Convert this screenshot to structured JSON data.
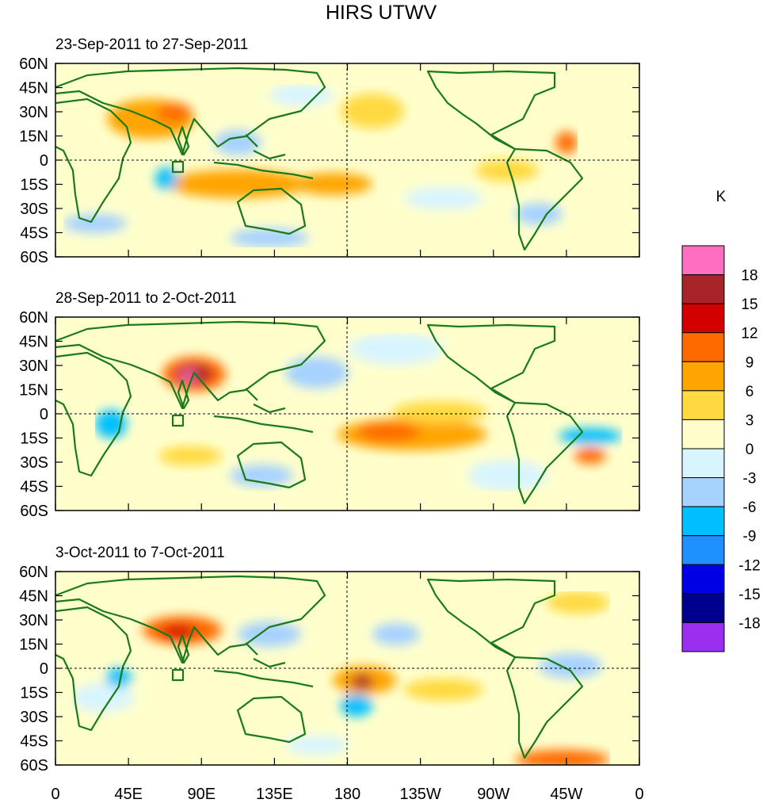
{
  "title": "HIRS UTWV",
  "panels": [
    {
      "period": "23-Sep-2011 to 27-Sep-2011"
    },
    {
      "period": "28-Sep-2011 to 2-Oct-2011"
    },
    {
      "period": "3-Oct-2011 to 7-Oct-2011"
    }
  ],
  "lat_labels": [
    "60N",
    "45N",
    "30N",
    "15N",
    "0",
    "15S",
    "30S",
    "45S",
    "60S"
  ],
  "lon_labels": [
    "0",
    "45E",
    "90E",
    "135E",
    "180",
    "135W",
    "90W",
    "45W",
    "0"
  ],
  "colorbar": {
    "unit": "K",
    "labels": [
      "18",
      "15",
      "12",
      "9",
      "6",
      "3",
      "0",
      "-3",
      "-6",
      "-9",
      "-12",
      "-15",
      "-18"
    ],
    "colors": [
      "#ff6ec0",
      "#a82428",
      "#d40000",
      "#ff6a00",
      "#ffa400",
      "#ffd940",
      "#ffffcc",
      "#d8f4ff",
      "#a6d2ff",
      "#00bfff",
      "#1e90ff",
      "#0000e6",
      "#00008f",
      "#9a2ff0"
    ]
  },
  "colors": {
    "land_outline": "#1a7a1a",
    "frame": "#000000"
  }
}
